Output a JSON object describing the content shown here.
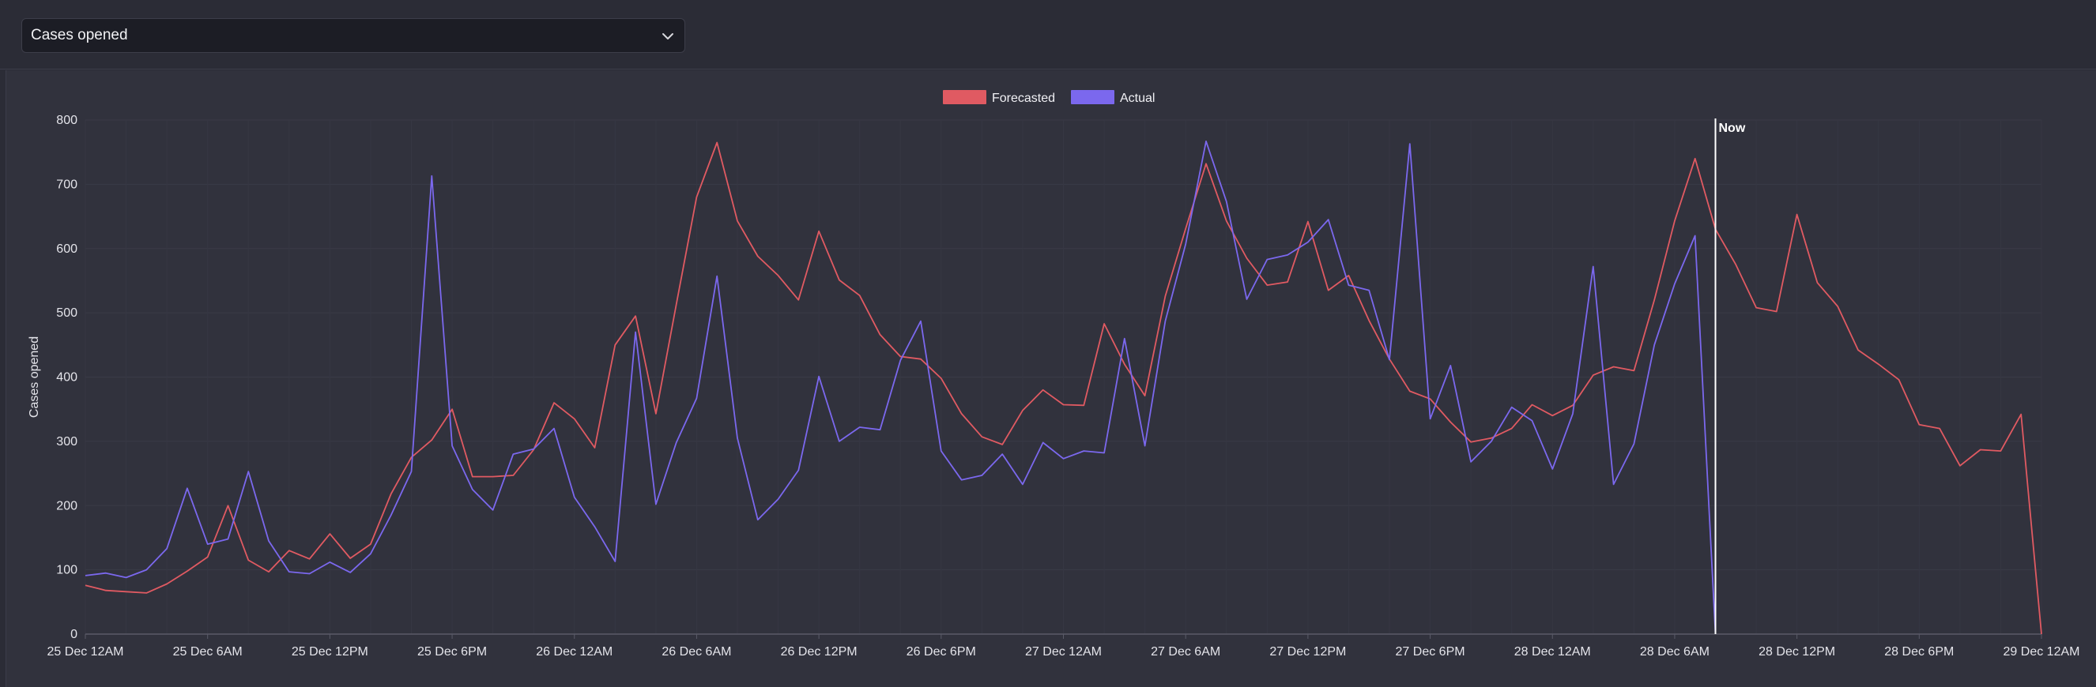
{
  "metric_select": {
    "value": "Cases opened"
  },
  "colors": {
    "forecasted": "#e05a62",
    "actual": "#7b68ee",
    "now_line": "#ffffff",
    "grid": "#3a3b47"
  },
  "icons": {
    "dropdown": "chevron-down-icon"
  },
  "chart_data": {
    "type": "line",
    "ylabel": "Cases opened",
    "xlabel": "",
    "title": "",
    "ylim": [
      0,
      800
    ],
    "yticks": [
      0,
      100,
      200,
      300,
      400,
      500,
      600,
      700,
      800
    ],
    "xlim": [
      "2023-12-25T00:00",
      "2023-12-29T00:00"
    ],
    "xticks": [
      {
        "t": "2023-12-25T00:00",
        "label": "25 Dec 12AM"
      },
      {
        "t": "2023-12-25T06:00",
        "label": "25 Dec 6AM"
      },
      {
        "t": "2023-12-25T12:00",
        "label": "25 Dec 12PM"
      },
      {
        "t": "2023-12-25T18:00",
        "label": "25 Dec 6PM"
      },
      {
        "t": "2023-12-26T00:00",
        "label": "26 Dec 12AM"
      },
      {
        "t": "2023-12-26T06:00",
        "label": "26 Dec 6AM"
      },
      {
        "t": "2023-12-26T12:00",
        "label": "26 Dec 12PM"
      },
      {
        "t": "2023-12-26T18:00",
        "label": "26 Dec 6PM"
      },
      {
        "t": "2023-12-27T00:00",
        "label": "27 Dec 12AM"
      },
      {
        "t": "2023-12-27T06:00",
        "label": "27 Dec 6AM"
      },
      {
        "t": "2023-12-27T12:00",
        "label": "27 Dec 12PM"
      },
      {
        "t": "2023-12-27T18:00",
        "label": "27 Dec 6PM"
      },
      {
        "t": "2023-12-28T00:00",
        "label": "28 Dec 12AM"
      },
      {
        "t": "2023-12-28T06:00",
        "label": "28 Dec 6AM"
      },
      {
        "t": "2023-12-28T12:00",
        "label": "28 Dec 12PM"
      },
      {
        "t": "2023-12-28T18:00",
        "label": "28 Dec 6PM"
      },
      {
        "t": "2023-12-29T00:00",
        "label": "29 Dec 12AM"
      }
    ],
    "legend": {
      "position": "top-center",
      "items": [
        "Forecasted",
        "Actual"
      ]
    },
    "grid": true,
    "annotation": {
      "label": "Now",
      "x": "2023-12-28T08:00"
    },
    "series": [
      {
        "name": "Forecasted",
        "points": [
          [
            "2023-12-25T00:00",
            76
          ],
          [
            "2023-12-25T01:00",
            68
          ],
          [
            "2023-12-25T02:00",
            66
          ],
          [
            "2023-12-25T03:00",
            64
          ],
          [
            "2023-12-25T04:00",
            78
          ],
          [
            "2023-12-25T05:00",
            98
          ],
          [
            "2023-12-25T06:00",
            120
          ],
          [
            "2023-12-25T07:00",
            200
          ],
          [
            "2023-12-25T08:00",
            115
          ],
          [
            "2023-12-25T09:00",
            97
          ],
          [
            "2023-12-25T10:00",
            130
          ],
          [
            "2023-12-25T11:00",
            117
          ],
          [
            "2023-12-25T12:00",
            156
          ],
          [
            "2023-12-25T13:00",
            118
          ],
          [
            "2023-12-25T14:00",
            140
          ],
          [
            "2023-12-25T15:00",
            218
          ],
          [
            "2023-12-25T16:00",
            275
          ],
          [
            "2023-12-25T17:00",
            302
          ],
          [
            "2023-12-25T18:00",
            350
          ],
          [
            "2023-12-25T19:00",
            245
          ],
          [
            "2023-12-25T20:00",
            245
          ],
          [
            "2023-12-25T21:00",
            247
          ],
          [
            "2023-12-25T22:00",
            287
          ],
          [
            "2023-12-25T23:00",
            360
          ],
          [
            "2023-12-26T00:00",
            335
          ],
          [
            "2023-12-26T01:00",
            290
          ],
          [
            "2023-12-26T02:00",
            450
          ],
          [
            "2023-12-26T03:00",
            495
          ],
          [
            "2023-12-26T04:00",
            343
          ],
          [
            "2023-12-26T05:00",
            513
          ],
          [
            "2023-12-26T06:00",
            680
          ],
          [
            "2023-12-26T07:00",
            765
          ],
          [
            "2023-12-26T08:00",
            643
          ],
          [
            "2023-12-26T09:00",
            588
          ],
          [
            "2023-12-26T10:00",
            558
          ],
          [
            "2023-12-26T11:00",
            520
          ],
          [
            "2023-12-26T12:00",
            627
          ],
          [
            "2023-12-26T13:00",
            551
          ],
          [
            "2023-12-26T14:00",
            527
          ],
          [
            "2023-12-26T15:00",
            466
          ],
          [
            "2023-12-26T16:00",
            432
          ],
          [
            "2023-12-26T17:00",
            428
          ],
          [
            "2023-12-26T18:00",
            398
          ],
          [
            "2023-12-26T19:00",
            343
          ],
          [
            "2023-12-26T20:00",
            307
          ],
          [
            "2023-12-26T21:00",
            295
          ],
          [
            "2023-12-26T22:00",
            348
          ],
          [
            "2023-12-26T23:00",
            380
          ],
          [
            "2023-12-27T00:00",
            357
          ],
          [
            "2023-12-27T01:00",
            356
          ],
          [
            "2023-12-27T02:00",
            483
          ],
          [
            "2023-12-27T03:00",
            420
          ],
          [
            "2023-12-27T04:00",
            371
          ],
          [
            "2023-12-27T05:00",
            526
          ],
          [
            "2023-12-27T06:00",
            631
          ],
          [
            "2023-12-27T07:00",
            732
          ],
          [
            "2023-12-27T08:00",
            643
          ],
          [
            "2023-12-27T09:00",
            585
          ],
          [
            "2023-12-27T10:00",
            543
          ],
          [
            "2023-12-27T11:00",
            548
          ],
          [
            "2023-12-27T12:00",
            642
          ],
          [
            "2023-12-27T13:00",
            535
          ],
          [
            "2023-12-27T14:00",
            558
          ],
          [
            "2023-12-27T15:00",
            488
          ],
          [
            "2023-12-27T16:00",
            428
          ],
          [
            "2023-12-27T17:00",
            378
          ],
          [
            "2023-12-27T18:00",
            366
          ],
          [
            "2023-12-27T19:00",
            330
          ],
          [
            "2023-12-27T20:00",
            299
          ],
          [
            "2023-12-27T21:00",
            305
          ],
          [
            "2023-12-27T22:00",
            320
          ],
          [
            "2023-12-27T23:00",
            357
          ],
          [
            "2023-12-28T00:00",
            340
          ],
          [
            "2023-12-28T01:00",
            356
          ],
          [
            "2023-12-28T02:00",
            403
          ],
          [
            "2023-12-28T03:00",
            416
          ],
          [
            "2023-12-28T04:00",
            410
          ],
          [
            "2023-12-28T05:00",
            520
          ],
          [
            "2023-12-28T06:00",
            643
          ],
          [
            "2023-12-28T07:00",
            740
          ],
          [
            "2023-12-28T08:00",
            630
          ],
          [
            "2023-12-28T09:00",
            575
          ],
          [
            "2023-12-28T10:00",
            508
          ],
          [
            "2023-12-28T11:00",
            502
          ],
          [
            "2023-12-28T12:00",
            653
          ],
          [
            "2023-12-28T13:00",
            547
          ],
          [
            "2023-12-28T14:00",
            510
          ],
          [
            "2023-12-28T15:00",
            442
          ],
          [
            "2023-12-28T16:00",
            420
          ],
          [
            "2023-12-28T17:00",
            396
          ],
          [
            "2023-12-28T18:00",
            326
          ],
          [
            "2023-12-28T19:00",
            320
          ],
          [
            "2023-12-28T20:00",
            262
          ],
          [
            "2023-12-28T21:00",
            287
          ],
          [
            "2023-12-28T22:00",
            285
          ],
          [
            "2023-12-28T23:00",
            342
          ],
          [
            "2023-12-29T00:00",
            0
          ]
        ]
      },
      {
        "name": "Actual",
        "points": [
          [
            "2023-12-25T00:00",
            91
          ],
          [
            "2023-12-25T01:00",
            95
          ],
          [
            "2023-12-25T02:00",
            88
          ],
          [
            "2023-12-25T03:00",
            100
          ],
          [
            "2023-12-25T04:00",
            133
          ],
          [
            "2023-12-25T05:00",
            227
          ],
          [
            "2023-12-25T06:00",
            140
          ],
          [
            "2023-12-25T07:00",
            148
          ],
          [
            "2023-12-25T08:00",
            253
          ],
          [
            "2023-12-25T09:00",
            145
          ],
          [
            "2023-12-25T10:00",
            97
          ],
          [
            "2023-12-25T11:00",
            94
          ],
          [
            "2023-12-25T12:00",
            112
          ],
          [
            "2023-12-25T13:00",
            96
          ],
          [
            "2023-12-25T14:00",
            125
          ],
          [
            "2023-12-25T15:00",
            185
          ],
          [
            "2023-12-25T16:00",
            253
          ],
          [
            "2023-12-25T17:00",
            713
          ],
          [
            "2023-12-25T18:00",
            293
          ],
          [
            "2023-12-25T19:00",
            225
          ],
          [
            "2023-12-25T20:00",
            193
          ],
          [
            "2023-12-25T21:00",
            280
          ],
          [
            "2023-12-25T22:00",
            288
          ],
          [
            "2023-12-25T23:00",
            320
          ],
          [
            "2023-12-26T00:00",
            213
          ],
          [
            "2023-12-26T01:00",
            167
          ],
          [
            "2023-12-26T02:00",
            113
          ],
          [
            "2023-12-26T03:00",
            470
          ],
          [
            "2023-12-26T04:00",
            202
          ],
          [
            "2023-12-26T05:00",
            298
          ],
          [
            "2023-12-26T06:00",
            367
          ],
          [
            "2023-12-26T07:00",
            557
          ],
          [
            "2023-12-26T08:00",
            305
          ],
          [
            "2023-12-26T09:00",
            178
          ],
          [
            "2023-12-26T10:00",
            210
          ],
          [
            "2023-12-26T11:00",
            255
          ],
          [
            "2023-12-26T12:00",
            401
          ],
          [
            "2023-12-26T13:00",
            300
          ],
          [
            "2023-12-26T14:00",
            322
          ],
          [
            "2023-12-26T15:00",
            318
          ],
          [
            "2023-12-26T16:00",
            426
          ],
          [
            "2023-12-26T17:00",
            487
          ],
          [
            "2023-12-26T18:00",
            285
          ],
          [
            "2023-12-26T19:00",
            240
          ],
          [
            "2023-12-26T20:00",
            247
          ],
          [
            "2023-12-26T21:00",
            280
          ],
          [
            "2023-12-26T22:00",
            233
          ],
          [
            "2023-12-26T23:00",
            298
          ],
          [
            "2023-12-27T00:00",
            273
          ],
          [
            "2023-12-27T01:00",
            285
          ],
          [
            "2023-12-27T02:00",
            282
          ],
          [
            "2023-12-27T03:00",
            460
          ],
          [
            "2023-12-27T04:00",
            293
          ],
          [
            "2023-12-27T05:00",
            487
          ],
          [
            "2023-12-27T06:00",
            607
          ],
          [
            "2023-12-27T07:00",
            767
          ],
          [
            "2023-12-27T08:00",
            673
          ],
          [
            "2023-12-27T09:00",
            521
          ],
          [
            "2023-12-27T10:00",
            583
          ],
          [
            "2023-12-27T11:00",
            590
          ],
          [
            "2023-12-27T12:00",
            610
          ],
          [
            "2023-12-27T13:00",
            645
          ],
          [
            "2023-12-27T14:00",
            543
          ],
          [
            "2023-12-27T15:00",
            535
          ],
          [
            "2023-12-27T16:00",
            427
          ],
          [
            "2023-12-27T17:00",
            763
          ],
          [
            "2023-12-27T18:00",
            335
          ],
          [
            "2023-12-27T19:00",
            418
          ],
          [
            "2023-12-27T20:00",
            268
          ],
          [
            "2023-12-27T21:00",
            300
          ],
          [
            "2023-12-27T22:00",
            353
          ],
          [
            "2023-12-27T23:00",
            332
          ],
          [
            "2023-12-28T00:00",
            257
          ],
          [
            "2023-12-28T01:00",
            343
          ],
          [
            "2023-12-28T02:00",
            572
          ],
          [
            "2023-12-28T03:00",
            233
          ],
          [
            "2023-12-28T04:00",
            296
          ],
          [
            "2023-12-28T05:00",
            450
          ],
          [
            "2023-12-28T06:00",
            545
          ],
          [
            "2023-12-28T07:00",
            620
          ],
          [
            "2023-12-28T08:00",
            0
          ]
        ]
      }
    ]
  }
}
